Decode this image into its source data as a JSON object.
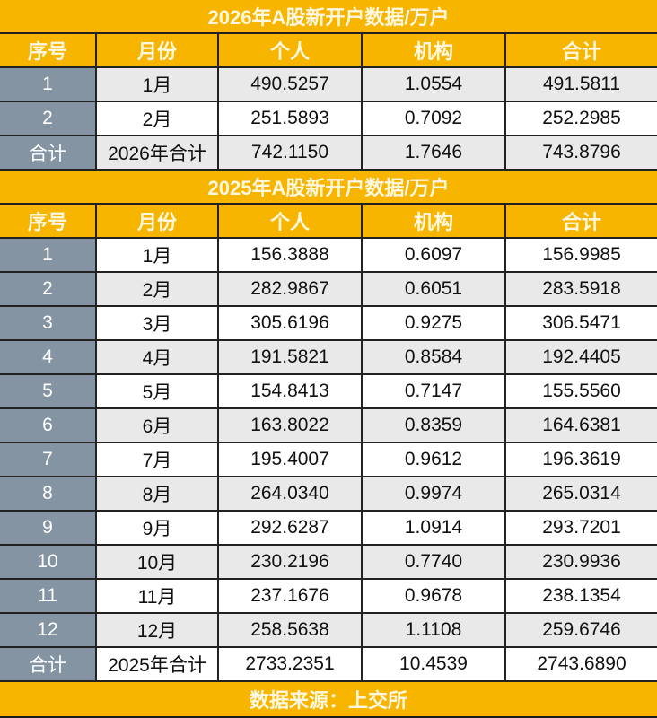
{
  "colors": {
    "accent": "#f7b500",
    "seq_column": "#8594a2",
    "row_alt": "#e9e9e9"
  },
  "columns": [
    "序号",
    "月份",
    "个人",
    "机构",
    "合计"
  ],
  "tables": [
    {
      "title": "2026年A股新开户数据/万户",
      "rows": [
        [
          "1",
          "1月",
          "490.5257",
          "1.0554",
          "491.5811"
        ],
        [
          "2",
          "2月",
          "251.5893",
          "0.7092",
          "252.2985"
        ]
      ],
      "total": [
        "合计",
        "2026年合计",
        "742.1150",
        "1.7646",
        "743.8796"
      ]
    },
    {
      "title": "2025年A股新开户数据/万户",
      "rows": [
        [
          "1",
          "1月",
          "156.3888",
          "0.6097",
          "156.9985"
        ],
        [
          "2",
          "2月",
          "282.9867",
          "0.6051",
          "283.5918"
        ],
        [
          "3",
          "3月",
          "305.6196",
          "0.9275",
          "306.5471"
        ],
        [
          "4",
          "4月",
          "191.5821",
          "0.8584",
          "192.4405"
        ],
        [
          "5",
          "5月",
          "154.8413",
          "0.7147",
          "155.5560"
        ],
        [
          "6",
          "6月",
          "163.8022",
          "0.8359",
          "164.6381"
        ],
        [
          "7",
          "7月",
          "195.4007",
          "0.9612",
          "196.3619"
        ],
        [
          "8",
          "8月",
          "264.0340",
          "0.9974",
          "265.0314"
        ],
        [
          "9",
          "9月",
          "292.6287",
          "1.0914",
          "293.7201"
        ],
        [
          "10",
          "10月",
          "230.2196",
          "0.7740",
          "230.9936"
        ],
        [
          "11",
          "11月",
          "237.1676",
          "0.9678",
          "238.1354"
        ],
        [
          "12",
          "12月",
          "258.5638",
          "1.1108",
          "259.6746"
        ]
      ],
      "total": [
        "合计",
        "2025年合计",
        "2733.2351",
        "10.4539",
        "2743.6890"
      ]
    }
  ],
  "footer": "数据来源：上交所"
}
